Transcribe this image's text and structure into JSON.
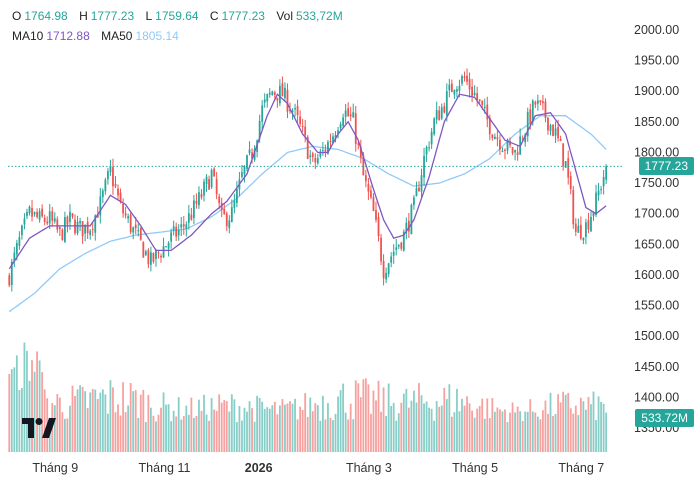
{
  "legend": {
    "ohlc": {
      "o_label": "O",
      "o_value": "1764.98",
      "h_label": "H",
      "h_value": "1777.23",
      "l_label": "L",
      "l_value": "1759.64",
      "c_label": "C",
      "c_value": "1777.23",
      "vol_label": "Vol",
      "vol_value": "533,72M"
    },
    "ma10_label": "MA10",
    "ma10_value": "1712.88",
    "ma50_label": "MA50",
    "ma50_value": "1805.14"
  },
  "price_tag": "1777.23",
  "volume_tag": "533.72M",
  "colors": {
    "up": "#26a69a",
    "down": "#ef5350",
    "ma10": "#7e57c2",
    "ma50": "#90caf9"
  },
  "chart_data": {
    "type": "candlestick",
    "y_ticks": [
      "2000.00",
      "1950.00",
      "1900.00",
      "1850.00",
      "1800.00",
      "1750.00",
      "1700.00",
      "1650.00",
      "1600.00",
      "1550.00",
      "1500.00",
      "1450.00",
      "1400.00",
      "1350.00"
    ],
    "ylim": [
      1330,
      2010
    ],
    "x_ticks": [
      {
        "label": "Tháng 9",
        "bold": false,
        "pos": 2
      },
      {
        "label": "Tháng 11",
        "bold": false,
        "pos": 44
      },
      {
        "label": "2026",
        "bold": true,
        "pos": 86
      },
      {
        "label": "Tháng 3",
        "bold": false,
        "pos": 126
      },
      {
        "label": "Tháng 5",
        "bold": false,
        "pos": 168
      },
      {
        "label": "Tháng 7",
        "bold": false,
        "pos": 210
      }
    ],
    "last_price": 1777.23,
    "close_path": [
      [
        0,
        1600
      ],
      [
        4,
        1655
      ],
      [
        8,
        1700
      ],
      [
        12,
        1690
      ],
      [
        16,
        1690
      ],
      [
        20,
        1665
      ],
      [
        24,
        1690
      ],
      [
        28,
        1675
      ],
      [
        32,
        1680
      ],
      [
        36,
        1715
      ],
      [
        40,
        1770
      ],
      [
        44,
        1710
      ],
      [
        48,
        1680
      ],
      [
        52,
        1650
      ],
      [
        56,
        1620
      ],
      [
        60,
        1640
      ],
      [
        64,
        1660
      ],
      [
        68,
        1675
      ],
      [
        72,
        1700
      ],
      [
        76,
        1730
      ],
      [
        80,
        1765
      ],
      [
        84,
        1690
      ],
      [
        88,
        1700
      ],
      [
        92,
        1760
      ],
      [
        96,
        1800
      ],
      [
        100,
        1870
      ],
      [
        104,
        1900
      ],
      [
        108,
        1895
      ],
      [
        112,
        1870
      ],
      [
        116,
        1830
      ],
      [
        120,
        1780
      ],
      [
        124,
        1800
      ],
      [
        128,
        1830
      ],
      [
        132,
        1870
      ],
      [
        136,
        1850
      ],
      [
        140,
        1760
      ],
      [
        144,
        1700
      ],
      [
        148,
        1610
      ],
      [
        152,
        1640
      ],
      [
        156,
        1665
      ],
      [
        160,
        1710
      ],
      [
        164,
        1790
      ],
      [
        168,
        1850
      ],
      [
        172,
        1880
      ],
      [
        176,
        1915
      ],
      [
        180,
        1920
      ],
      [
        184,
        1895
      ],
      [
        188,
        1860
      ],
      [
        192,
        1830
      ],
      [
        196,
        1810
      ],
      [
        200,
        1800
      ],
      [
        204,
        1840
      ],
      [
        208,
        1880
      ],
      [
        212,
        1860
      ],
      [
        216,
        1830
      ],
      [
        220,
        1780
      ],
      [
        224,
        1670
      ],
      [
        228,
        1680
      ],
      [
        232,
        1720
      ],
      [
        236,
        1777
      ]
    ],
    "ma10": [
      [
        0,
        1610
      ],
      [
        8,
        1660
      ],
      [
        16,
        1680
      ],
      [
        24,
        1680
      ],
      [
        32,
        1680
      ],
      [
        40,
        1730
      ],
      [
        46,
        1715
      ],
      [
        52,
        1680
      ],
      [
        58,
        1640
      ],
      [
        64,
        1640
      ],
      [
        72,
        1665
      ],
      [
        80,
        1700
      ],
      [
        86,
        1720
      ],
      [
        94,
        1765
      ],
      [
        102,
        1860
      ],
      [
        106,
        1895
      ],
      [
        110,
        1880
      ],
      [
        116,
        1830
      ],
      [
        122,
        1800
      ],
      [
        126,
        1800
      ],
      [
        130,
        1830
      ],
      [
        134,
        1850
      ],
      [
        138,
        1820
      ],
      [
        144,
        1740
      ],
      [
        148,
        1690
      ],
      [
        152,
        1660
      ],
      [
        156,
        1665
      ],
      [
        160,
        1690
      ],
      [
        166,
        1760
      ],
      [
        172,
        1850
      ],
      [
        178,
        1895
      ],
      [
        184,
        1890
      ],
      [
        190,
        1855
      ],
      [
        196,
        1820
      ],
      [
        202,
        1810
      ],
      [
        208,
        1860
      ],
      [
        214,
        1865
      ],
      [
        220,
        1830
      ],
      [
        224,
        1770
      ],
      [
        228,
        1710
      ],
      [
        232,
        1700
      ],
      [
        236,
        1713
      ]
    ],
    "ma50": [
      [
        0,
        1540
      ],
      [
        10,
        1570
      ],
      [
        20,
        1610
      ],
      [
        30,
        1635
      ],
      [
        40,
        1655
      ],
      [
        50,
        1665
      ],
      [
        60,
        1670
      ],
      [
        70,
        1675
      ],
      [
        80,
        1695
      ],
      [
        90,
        1725
      ],
      [
        100,
        1765
      ],
      [
        110,
        1800
      ],
      [
        120,
        1810
      ],
      [
        130,
        1805
      ],
      [
        140,
        1790
      ],
      [
        150,
        1765
      ],
      [
        160,
        1745
      ],
      [
        170,
        1750
      ],
      [
        180,
        1765
      ],
      [
        190,
        1790
      ],
      [
        200,
        1830
      ],
      [
        210,
        1860
      ],
      [
        220,
        1860
      ],
      [
        230,
        1830
      ],
      [
        236,
        1805
      ]
    ],
    "volume_scale_max": 1000
  }
}
